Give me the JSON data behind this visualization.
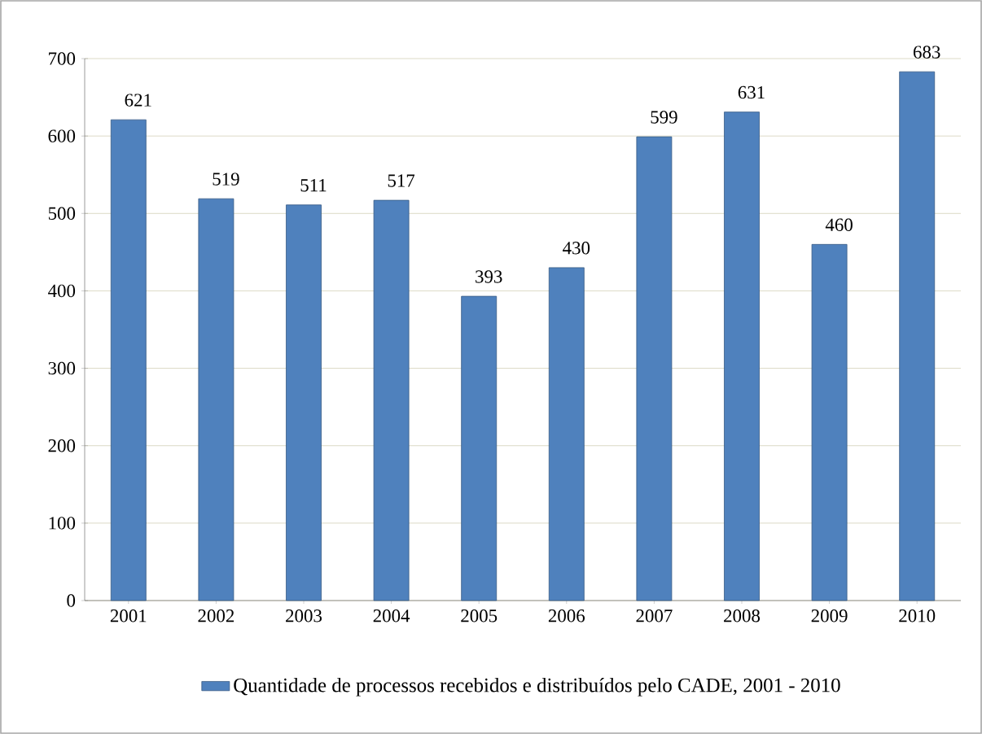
{
  "chart_data": {
    "type": "bar",
    "categories": [
      "2001",
      "2002",
      "2003",
      "2004",
      "2005",
      "2006",
      "2007",
      "2008",
      "2009",
      "2010"
    ],
    "series": [
      {
        "name": "Quantidade de processos recebidos e distribuídos pelo CADE, 2001 - 2010",
        "color": "#4f81bd",
        "values": [
          621,
          519,
          511,
          517,
          393,
          430,
          599,
          631,
          460,
          683
        ]
      }
    ],
    "ylim": [
      0,
      700
    ],
    "yticks": [
      0,
      100,
      200,
      300,
      400,
      500,
      600,
      700
    ],
    "grid": "y",
    "data_labels": true,
    "legend": "bottom"
  }
}
